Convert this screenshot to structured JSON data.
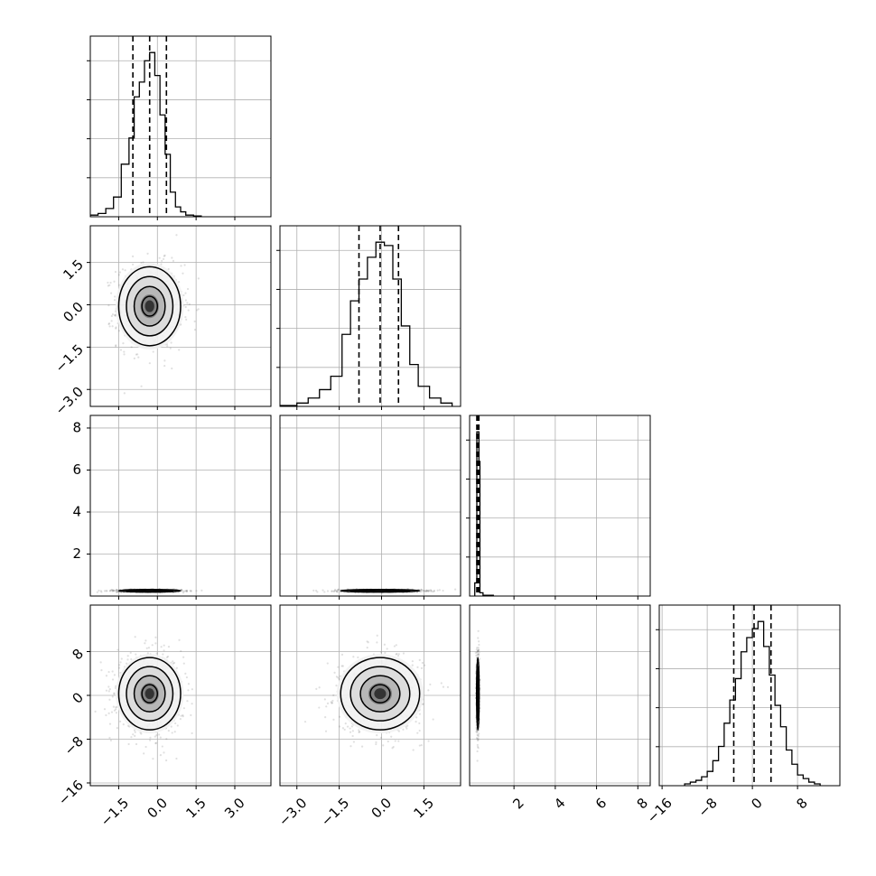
{
  "chart_data": {
    "type": "corner",
    "parameters": [
      {
        "id": "p0",
        "xlim": [
          -2.6,
          4.4
        ],
        "ticks": [
          -1.5,
          0.0,
          1.5,
          3.0
        ],
        "tick_labels": [
          "−1.5",
          "0.0",
          "1.5",
          "3.0"
        ],
        "mean": -0.3,
        "std": 0.6,
        "quantiles": [
          -0.95,
          -0.3,
          0.35
        ],
        "hist_peak": 1.0
      },
      {
        "id": "p1",
        "xlim": [
          -3.6,
          2.8
        ],
        "ticks": [
          -3.0,
          -1.5,
          0.0,
          1.5
        ],
        "tick_labels": [
          "−3.0",
          "−1.5",
          "0.0",
          "1.5"
        ],
        "mean": -0.05,
        "std": 0.7,
        "quantiles": [
          -0.8,
          -0.05,
          0.6
        ],
        "hist_peak": 1.0
      },
      {
        "id": "p2",
        "xlim": [
          -0.15,
          8.6
        ],
        "ticks": [
          2,
          4,
          6,
          8
        ],
        "tick_labels": [
          "2",
          "4",
          "6",
          "8"
        ],
        "mean": 0.25,
        "std": 0.03,
        "quantiles": [
          0.2,
          0.25,
          0.3
        ],
        "hist_peak": 1.0
      },
      {
        "id": "p3",
        "xlim": [
          -16.5,
          15.5
        ],
        "ticks": [
          -16,
          -8,
          0,
          8
        ],
        "tick_labels": [
          "−16",
          "−8",
          "0",
          "8"
        ],
        "mean": 0.3,
        "std": 3.3,
        "quantiles": [
          -3.3,
          0.3,
          3.3
        ],
        "hist_peak": 1.0
      }
    ],
    "row_tick_labels": {
      "p1": {
        "ticks": [
          -3.0,
          -1.5,
          0.0,
          1.5
        ],
        "labels": [
          "−3.0",
          "−1.5",
          "0.0",
          "1.5"
        ]
      },
      "p2": {
        "ticks": [
          2,
          4,
          6,
          8
        ],
        "labels": [
          "2",
          "4",
          "6",
          "8"
        ]
      },
      "p3": {
        "ticks": [
          -16,
          -8,
          0,
          8
        ],
        "labels": [
          "−16",
          "−8",
          "0",
          "8"
        ]
      }
    },
    "diagonal_histograms": {
      "p0": {
        "edges": [
          -2.6,
          -2.3,
          -2.0,
          -1.7,
          -1.4,
          -1.1,
          -0.9,
          -0.7,
          -0.5,
          -0.3,
          -0.1,
          0.1,
          0.3,
          0.5,
          0.7,
          0.9,
          1.1,
          1.4,
          1.7
        ],
        "counts": [
          0.01,
          0.02,
          0.05,
          0.12,
          0.32,
          0.48,
          0.73,
          0.82,
          0.95,
          1.0,
          0.86,
          0.62,
          0.38,
          0.15,
          0.06,
          0.03,
          0.01,
          0.005
        ]
      },
      "p1": {
        "edges": [
          -3.6,
          -3.0,
          -2.6,
          -2.2,
          -1.8,
          -1.4,
          -1.1,
          -0.8,
          -0.5,
          -0.2,
          0.1,
          0.4,
          0.7,
          1.0,
          1.3,
          1.7,
          2.1,
          2.5
        ],
        "counts": [
          0.005,
          0.02,
          0.05,
          0.1,
          0.18,
          0.43,
          0.63,
          0.76,
          0.89,
          0.98,
          0.96,
          0.76,
          0.48,
          0.25,
          0.12,
          0.05,
          0.02
        ]
      },
      "p2": {
        "edges": [
          0.1,
          0.2,
          0.25,
          0.3,
          0.35,
          0.5,
          1.0
        ],
        "counts": [
          0.08,
          1.0,
          1.0,
          0.82,
          0.02,
          0.005
        ]
      },
      "p3": {
        "edges": [
          -12,
          -11,
          -10,
          -9,
          -8,
          -7,
          -6,
          -5,
          -4,
          -3,
          -2,
          -1,
          0,
          1,
          2,
          3,
          4,
          5,
          6,
          7,
          8,
          9,
          10,
          11,
          12
        ],
        "counts": [
          0.01,
          0.02,
          0.03,
          0.05,
          0.08,
          0.14,
          0.22,
          0.35,
          0.48,
          0.6,
          0.75,
          0.83,
          0.88,
          0.92,
          0.78,
          0.62,
          0.45,
          0.33,
          0.2,
          0.12,
          0.06,
          0.04,
          0.02,
          0.01
        ]
      }
    },
    "ylim": {
      "p1": [
        -3.6,
        2.8
      ],
      "p2": [
        0,
        8.6
      ],
      "p3": [
        -16.5,
        16.5
      ]
    },
    "contour_levels_sigma": [
      0.5,
      1.0,
      1.5,
      2.0
    ],
    "grid": true
  }
}
